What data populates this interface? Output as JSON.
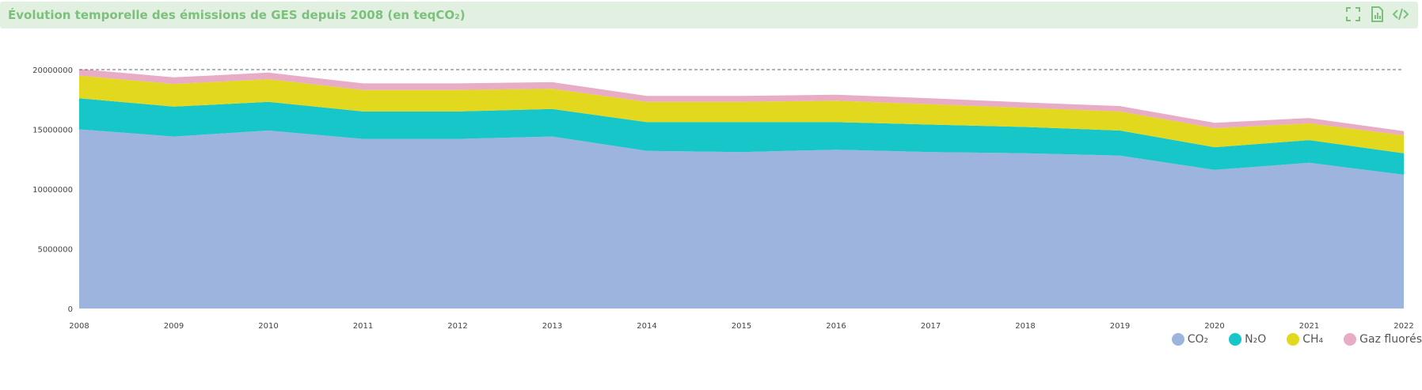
{
  "header": {
    "title": "Évolution temporelle des émissions de GES depuis 2008 (en teqCO₂)",
    "icons": [
      "fullscreen-icon",
      "export-data-icon",
      "embed-code-icon"
    ],
    "color": "#7cc07c"
  },
  "chart_data": {
    "type": "area",
    "stacked": true,
    "x": [
      "2008",
      "2009",
      "2010",
      "2011",
      "2012",
      "2013",
      "2014",
      "2015",
      "2016",
      "2017",
      "2018",
      "2019",
      "2020",
      "2021",
      "2022"
    ],
    "ylim": [
      0,
      20000000
    ],
    "yticks": [
      "0",
      "5000000",
      "10000000",
      "15000000",
      "20000000"
    ],
    "reference_line": 20000000,
    "series": [
      {
        "name": "CO₂",
        "color": "#9db4de",
        "values": [
          15000000,
          14400000,
          14900000,
          14200000,
          14200000,
          14400000,
          13200000,
          13100000,
          13300000,
          13100000,
          13000000,
          12800000,
          11600000,
          12200000,
          11200000
        ]
      },
      {
        "name": "N₂O",
        "color": "#16c6c8",
        "values": [
          2600000,
          2500000,
          2400000,
          2300000,
          2300000,
          2300000,
          2400000,
          2500000,
          2300000,
          2300000,
          2200000,
          2100000,
          1900000,
          1900000,
          1800000
        ]
      },
      {
        "name": "CH₄",
        "color": "#e2d91e",
        "values": [
          1900000,
          1900000,
          1900000,
          1800000,
          1800000,
          1700000,
          1700000,
          1700000,
          1800000,
          1700000,
          1600000,
          1600000,
          1600000,
          1400000,
          1500000
        ]
      },
      {
        "name": "Gaz fluorés",
        "color": "#e8acc6",
        "values": [
          550000,
          550000,
          550000,
          550000,
          550000,
          550000,
          500000,
          500000,
          500000,
          500000,
          450000,
          450000,
          450000,
          450000,
          350000
        ]
      }
    ],
    "grid": false,
    "legend_position": "bottom-right"
  }
}
